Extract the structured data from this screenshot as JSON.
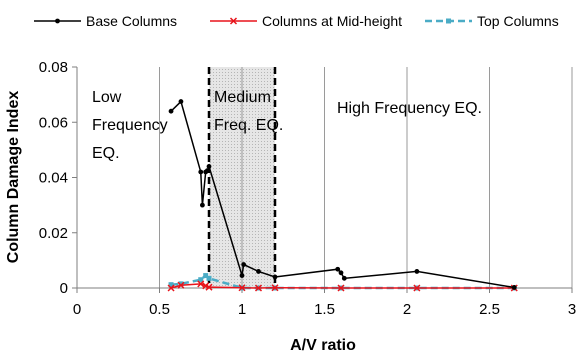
{
  "chart_data": {
    "type": "line",
    "title": "",
    "xlabel": "A/V ratio",
    "ylabel": "Column Damage Index",
    "xlim": [
      0,
      3
    ],
    "ylim": [
      0,
      0.08
    ],
    "x_ticks": [
      0,
      0.5,
      1,
      1.5,
      2,
      2.5,
      3
    ],
    "x_tick_labels": [
      "0",
      "0.5",
      "1",
      "1.5",
      "2",
      "2.5",
      "3"
    ],
    "y_ticks": [
      0,
      0.02,
      0.04,
      0.06,
      0.08
    ],
    "y_tick_labels": [
      "0",
      "0.02",
      "0.04",
      "0.06",
      "0.08"
    ],
    "grid": "vertical lines at x-ticks",
    "legend": "top",
    "series": [
      {
        "name": "Base Columns",
        "color": "#000000",
        "marker": "dot",
        "dash": "solid",
        "x": [
          0.57,
          0.63,
          0.75,
          0.76,
          0.78,
          0.79,
          0.8,
          1.0,
          1.01,
          1.1,
          1.2,
          1.58,
          1.6,
          1.62,
          2.06,
          2.65
        ],
        "y": [
          0.064,
          0.0675,
          0.042,
          0.03,
          0.042,
          0.0425,
          0.044,
          0.0045,
          0.0085,
          0.006,
          0.004,
          0.0068,
          0.0055,
          0.0035,
          0.006,
          0.0002
        ]
      },
      {
        "name": "Columns at Mid-height",
        "color": "#e8141b",
        "marker": "x",
        "dash": "solid",
        "x": [
          0.57,
          0.63,
          0.75,
          0.78,
          0.8,
          1.0,
          1.1,
          1.2,
          1.6,
          2.06,
          2.65
        ],
        "y": [
          0.0,
          0.001,
          0.0015,
          0.0008,
          0.0003,
          0.0001,
          0.0,
          0.0001,
          0.0,
          0.0,
          0.0
        ]
      },
      {
        "name": "Top Columns",
        "color": "#4bacc6",
        "marker": "square",
        "dash": "dashed",
        "x": [
          0.57,
          0.63,
          0.75,
          0.78,
          0.8,
          1.0,
          1.1,
          1.2,
          1.6,
          2.06,
          2.65
        ],
        "y": [
          0.0012,
          0.0015,
          0.003,
          0.0045,
          0.0035,
          0.0,
          0.0,
          0.0,
          0.0,
          0.0,
          0.0
        ]
      }
    ],
    "shaded_region": {
      "x_from": 0.8,
      "x_to": 1.2,
      "fill": "#d9d9d9",
      "border": "dashed"
    },
    "annotations": [
      {
        "lines": [
          "Low",
          "Frequency",
          "EQ."
        ]
      },
      {
        "lines": [
          "Medium",
          "Freq. EQ."
        ]
      },
      {
        "lines": [
          "High Frequency EQ."
        ]
      }
    ]
  }
}
